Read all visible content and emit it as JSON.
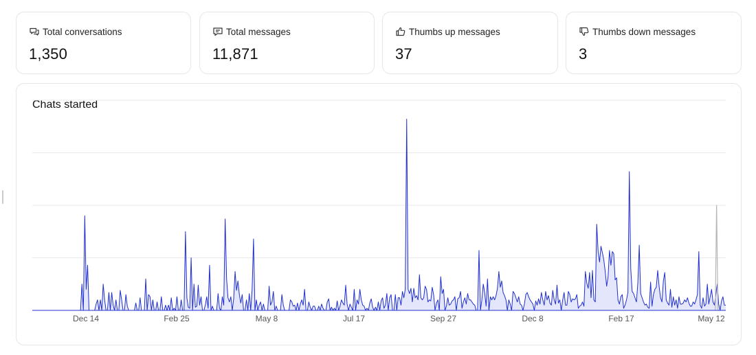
{
  "stats": [
    {
      "label": "Total conversations",
      "value": "1,350",
      "icon": "chat-bubbles-icon"
    },
    {
      "label": "Total messages",
      "value": "11,871",
      "icon": "message-icon"
    },
    {
      "label": "Thumbs up messages",
      "value": "37",
      "icon": "thumbs-up-icon"
    },
    {
      "label": "Thumbs down messages",
      "value": "3",
      "icon": "thumbs-down-icon"
    }
  ],
  "colors": {
    "line": "#1f2fcf",
    "fill": "#e4e6fb",
    "grid": "#e9e9e9",
    "highlight": "#b5b5b5"
  },
  "chart_data": {
    "type": "area",
    "title": "Chats started",
    "xlabel": "",
    "ylabel": "",
    "ylim": [
      0,
      20
    ],
    "grid": true,
    "legend": "none",
    "x_tick_labels": [
      "Dec 14",
      "Feb 25",
      "May 8",
      "Jul 17",
      "Sep 27",
      "Dec 8",
      "Feb 17",
      "May 12"
    ],
    "series": [
      {
        "values": [
          0,
          0,
          0,
          0,
          0,
          0,
          0,
          0,
          0,
          0,
          0,
          0,
          0,
          0,
          0,
          0,
          0,
          0,
          0,
          0,
          0,
          0,
          0,
          0,
          0,
          0,
          0,
          0,
          0,
          0,
          0,
          0,
          0,
          0,
          0,
          2.5,
          0,
          9,
          2,
          4.3,
          0,
          0,
          0,
          0,
          0,
          0.6,
          1,
          0,
          1,
          0,
          2.5,
          1,
          0,
          0,
          1.7,
          0,
          1.7,
          0.5,
          0,
          1,
          0,
          0,
          1.9,
          1,
          0,
          0,
          1.5,
          0.4,
          0,
          0,
          0,
          0,
          0,
          0.7,
          0,
          0,
          1.2,
          0,
          0,
          0,
          3,
          0,
          1.5,
          1.3,
          0,
          1,
          0,
          0,
          0.8,
          0,
          0,
          1.3,
          0,
          0,
          0.5,
          0,
          0.5,
          0,
          1.2,
          0,
          0.2,
          0,
          1.3,
          0,
          0,
          1,
          0,
          0,
          7.5,
          1.2,
          0.3,
          0.2,
          5,
          0,
          2.5,
          0.3,
          0.4,
          2.4,
          0.5,
          1.3,
          0,
          0,
          0.5,
          1.3,
          0.2,
          4.3,
          0,
          0.4,
          0,
          0,
          0,
          1.6,
          0.2,
          0,
          1.3,
          0.5,
          8.7,
          3,
          1.2,
          0.8,
          1.3,
          0,
          1.1,
          3.7,
          1.9,
          2.8,
          1.5,
          0.7,
          1.5,
          0,
          0,
          1,
          0,
          1.6,
          0,
          2,
          6.8,
          0,
          1,
          0,
          0.5,
          0.8,
          0,
          0.6,
          0,
          0,
          0,
          2.3,
          0.5,
          0.8,
          1.8,
          0,
          0.4,
          0,
          0,
          0,
          1.5,
          0.5,
          0,
          0,
          0,
          0,
          1,
          0.8,
          0.4,
          0.5,
          0,
          0.7,
          0,
          0.6,
          1,
          0.5,
          2,
          0,
          0,
          0.8,
          0.3,
          0,
          0.4,
          0.4,
          0,
          0,
          0.4,
          0,
          0.6,
          0.2,
          0,
          0,
          0.8,
          1.1,
          0,
          0.3,
          0,
          0.2,
          0,
          0.9,
          0,
          0.4,
          1,
          0.7,
          0.5,
          2.4,
          0.6,
          0,
          0.6,
          0.3,
          0,
          2,
          0,
          1,
          0.6,
          2,
          1,
          0.5,
          0.4,
          0,
          0.2,
          0,
          0.7,
          1.1,
          0.3,
          0,
          0.3,
          0,
          0.8,
          0,
          0.9,
          1.2,
          0.2,
          0.5,
          1.6,
          0,
          1.2,
          1.5,
          0,
          0,
          1.5,
          0,
          1.2,
          1.2,
          0.5,
          1.8,
          1.2,
          2,
          18.2,
          2,
          1.6,
          2.1,
          0.8,
          2.1,
          1.2,
          1.4,
          1,
          3.4,
          1.2,
          1,
          1.2,
          2.3,
          2,
          0.8,
          1,
          0.9,
          2.2,
          1.5,
          0,
          0.7,
          1,
          0,
          3.2,
          1.6,
          2,
          0,
          0.4,
          1.2,
          0.5,
          0.6,
          0.9,
          1,
          1.3,
          0,
          1.1,
          1.2,
          1.8,
          0.2,
          0.8,
          1.2,
          0.6,
          1.6,
          1,
          1,
          0.8,
          0.6,
          0.5,
          0,
          0,
          5.7,
          0,
          1,
          2.5,
          1.7,
          0.4,
          3,
          0,
          1.3,
          1,
          1.3,
          1,
          1.4,
          2.1,
          3.7,
          2.2,
          2.8,
          1.7,
          1.4,
          1,
          0,
          1,
          0.6,
          0,
          1.8,
          1.6,
          1.2,
          0.8,
          1.3,
          0.6,
          0.5,
          0,
          0.6,
          1.5,
          1.7,
          1.3,
          1,
          0.8,
          0.6,
          0,
          0.9,
          0.5,
          1.1,
          0.6,
          1.7,
          1,
          0.5,
          1.8,
          1,
          1.4,
          0.7,
          0.5,
          1.9,
          1,
          0.6,
          2.4,
          0.7,
          1,
          0,
          1,
          1.7,
          0.5,
          0.5,
          1.8,
          1.5,
          0.8,
          1.1,
          1,
          1.1,
          1.5,
          0.2,
          0.4,
          0.5,
          0.8,
          0.4,
          3.7,
          2.6,
          2.1,
          3.6,
          1.2,
          3.8,
          1,
          0.8,
          8.2,
          5.6,
          4.6,
          6.1,
          5.5,
          4.8,
          3.7,
          2.3,
          3.2,
          5.7,
          4.3,
          5.6,
          5.4,
          2.9,
          3.1,
          1,
          0.6,
          1.3,
          1.5,
          0.2,
          0.5,
          1,
          1.7,
          13.2,
          4,
          1.8,
          1.6,
          1.2,
          0.8,
          2.6,
          6.2,
          1.6,
          1.2,
          0.8,
          0.5,
          0.6,
          0.3,
          0.2,
          2.7,
          0.4,
          1.5,
          2,
          2.2,
          3.8,
          2.3,
          1.2,
          0.8,
          2.8,
          3.6,
          1,
          0.7,
          0.5,
          2,
          0.3,
          1.3,
          0.5,
          1,
          0.2,
          1.3,
          0.6,
          0.6,
          0.7,
          1,
          0.8,
          1.2,
          0.7,
          0.4,
          0.4,
          0.8,
          0.6,
          1,
          1.5,
          5.6,
          0.5,
          0.2,
          1.2,
          0.4,
          0.6,
          2.5,
          0.6,
          1.3,
          2,
          0.8,
          0.5,
          1.5,
          2.5,
          0.6,
          0,
          0.9,
          1.3,
          0.5,
          0.5
        ]
      },
      {
        "name": "",
        "highlight": true,
        "values": [
          0,
          0,
          0,
          0,
          0,
          0,
          0,
          0,
          0,
          0,
          0,
          0,
          0,
          0,
          0,
          0,
          0,
          0,
          0,
          0,
          0,
          0,
          0,
          0,
          0,
          0,
          0,
          0,
          0,
          0,
          0,
          0,
          0,
          0,
          0,
          0,
          0,
          0,
          0,
          0,
          0,
          0,
          0,
          0,
          0,
          0,
          0,
          0,
          0,
          0,
          0,
          0,
          0,
          0,
          0,
          0,
          0,
          0,
          0,
          0,
          0,
          0,
          0,
          0,
          0,
          0,
          0,
          0,
          0,
          0,
          0,
          0,
          0,
          0,
          0,
          0,
          0,
          0,
          0,
          0,
          0,
          0,
          0,
          0,
          0,
          0,
          0,
          0,
          0,
          0,
          0,
          0,
          0,
          0,
          0,
          0,
          0,
          0,
          0,
          0,
          0,
          0,
          0,
          0,
          0,
          0,
          0,
          0,
          0,
          0,
          0,
          0,
          0,
          0,
          0,
          0,
          0,
          0,
          0,
          0,
          0,
          0,
          0,
          0,
          0,
          0,
          0,
          0,
          0,
          0,
          0,
          0,
          0,
          0,
          0,
          0,
          0,
          0,
          0,
          0,
          0,
          0,
          0,
          0,
          0,
          0,
          0,
          0,
          0,
          0,
          0,
          0,
          0,
          0,
          0,
          0,
          0,
          0,
          0,
          0,
          0,
          0,
          0,
          0,
          0,
          0,
          0,
          0,
          0,
          0,
          0,
          0,
          0,
          0,
          0,
          0,
          0,
          0,
          0,
          0,
          0,
          0,
          0,
          0,
          0,
          0,
          0,
          0,
          0,
          0,
          0,
          0,
          0,
          0,
          0,
          0,
          0,
          0,
          0,
          0,
          0,
          0,
          0,
          0,
          0,
          0,
          0,
          0,
          0,
          0,
          0,
          0,
          0,
          0,
          0,
          0,
          0,
          0,
          0,
          0,
          0,
          0,
          0,
          0,
          0,
          0,
          0,
          0,
          0,
          0,
          0,
          0,
          0,
          0,
          0,
          0,
          0,
          0,
          0,
          0,
          0,
          0,
          0,
          0,
          0,
          0,
          0,
          0,
          0,
          0,
          0,
          0,
          0,
          0,
          0,
          0,
          0,
          0,
          0,
          0,
          0,
          0,
          0,
          0,
          0,
          0,
          0,
          0,
          0,
          0,
          0,
          0,
          0,
          0,
          0,
          0,
          0,
          0,
          0,
          0,
          0,
          0,
          0,
          0,
          0,
          0,
          0,
          0,
          0,
          0,
          0,
          0,
          0,
          0,
          0,
          0,
          0,
          0,
          0,
          0,
          0,
          0,
          0,
          0,
          0,
          0,
          0,
          0,
          0,
          0,
          0,
          0,
          0,
          0,
          0,
          0,
          0,
          0,
          0,
          0,
          0,
          0,
          0,
          0,
          0,
          0,
          0,
          0,
          0,
          0,
          0,
          0,
          0,
          0,
          0,
          0,
          0,
          0,
          0,
          0,
          0,
          0,
          0,
          0,
          0,
          0,
          0,
          0,
          0,
          0,
          0,
          0,
          0,
          0,
          0,
          0,
          0,
          0,
          0,
          0,
          0,
          0,
          0,
          0,
          0,
          0,
          0,
          0,
          0,
          0,
          0,
          0,
          0,
          0,
          0,
          0,
          0,
          0,
          0,
          0,
          0,
          0,
          0,
          0,
          0,
          0,
          0,
          0,
          0,
          0,
          0,
          0,
          0,
          0,
          0,
          0,
          0,
          0,
          0,
          0,
          0,
          0,
          0,
          0,
          0,
          0,
          0,
          0,
          0,
          0,
          0,
          0,
          0,
          0,
          0,
          0,
          0,
          0,
          0,
          0,
          0,
          0,
          0,
          0,
          0,
          0,
          0,
          0,
          0,
          0,
          0,
          0,
          0,
          0,
          0,
          0,
          0,
          0,
          0,
          0,
          0,
          0,
          0,
          0,
          0,
          0,
          0,
          0,
          0,
          0,
          0,
          0,
          0,
          0,
          0,
          0,
          0,
          0,
          0,
          0,
          0,
          0,
          0,
          0,
          0,
          0,
          0,
          0,
          0,
          0,
          0,
          0,
          0,
          0,
          0,
          0,
          0,
          0,
          0,
          0,
          0,
          0,
          0,
          0,
          0,
          0,
          0,
          0,
          0,
          0,
          0,
          0,
          0,
          0,
          0,
          0,
          0,
          0,
          0,
          0,
          0,
          0,
          0,
          0,
          0,
          0,
          0,
          0,
          0,
          0,
          0,
          0,
          0,
          0,
          0,
          0,
          0,
          0,
          0,
          0,
          0,
          0,
          10,
          0,
          0,
          0,
          0,
          0,
          0,
          0
        ]
      }
    ]
  }
}
